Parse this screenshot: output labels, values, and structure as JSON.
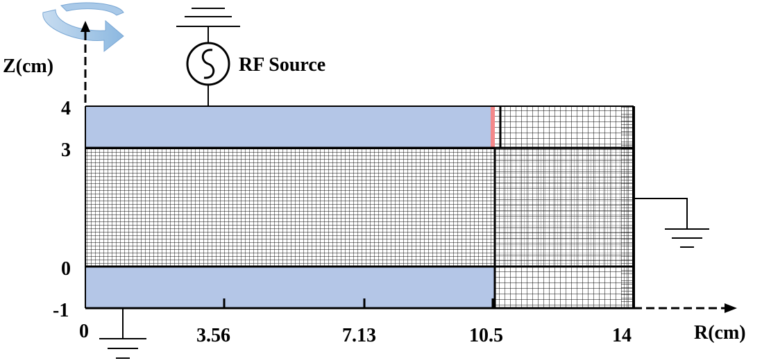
{
  "labels": {
    "z_axis": "Z(cm)",
    "r_axis": "R(cm)",
    "source": "RF Source"
  },
  "z_ticks": [
    "4",
    "3",
    "0",
    "-1"
  ],
  "r_ticks": [
    "0",
    "3.56",
    "7.13",
    "10.5",
    "14"
  ],
  "colors": {
    "dielectric": "#b4c6e7",
    "electrode_gap": "#f4888a",
    "mesh_line": "#000000",
    "rotation_arrow": "#9dc3e6"
  }
}
